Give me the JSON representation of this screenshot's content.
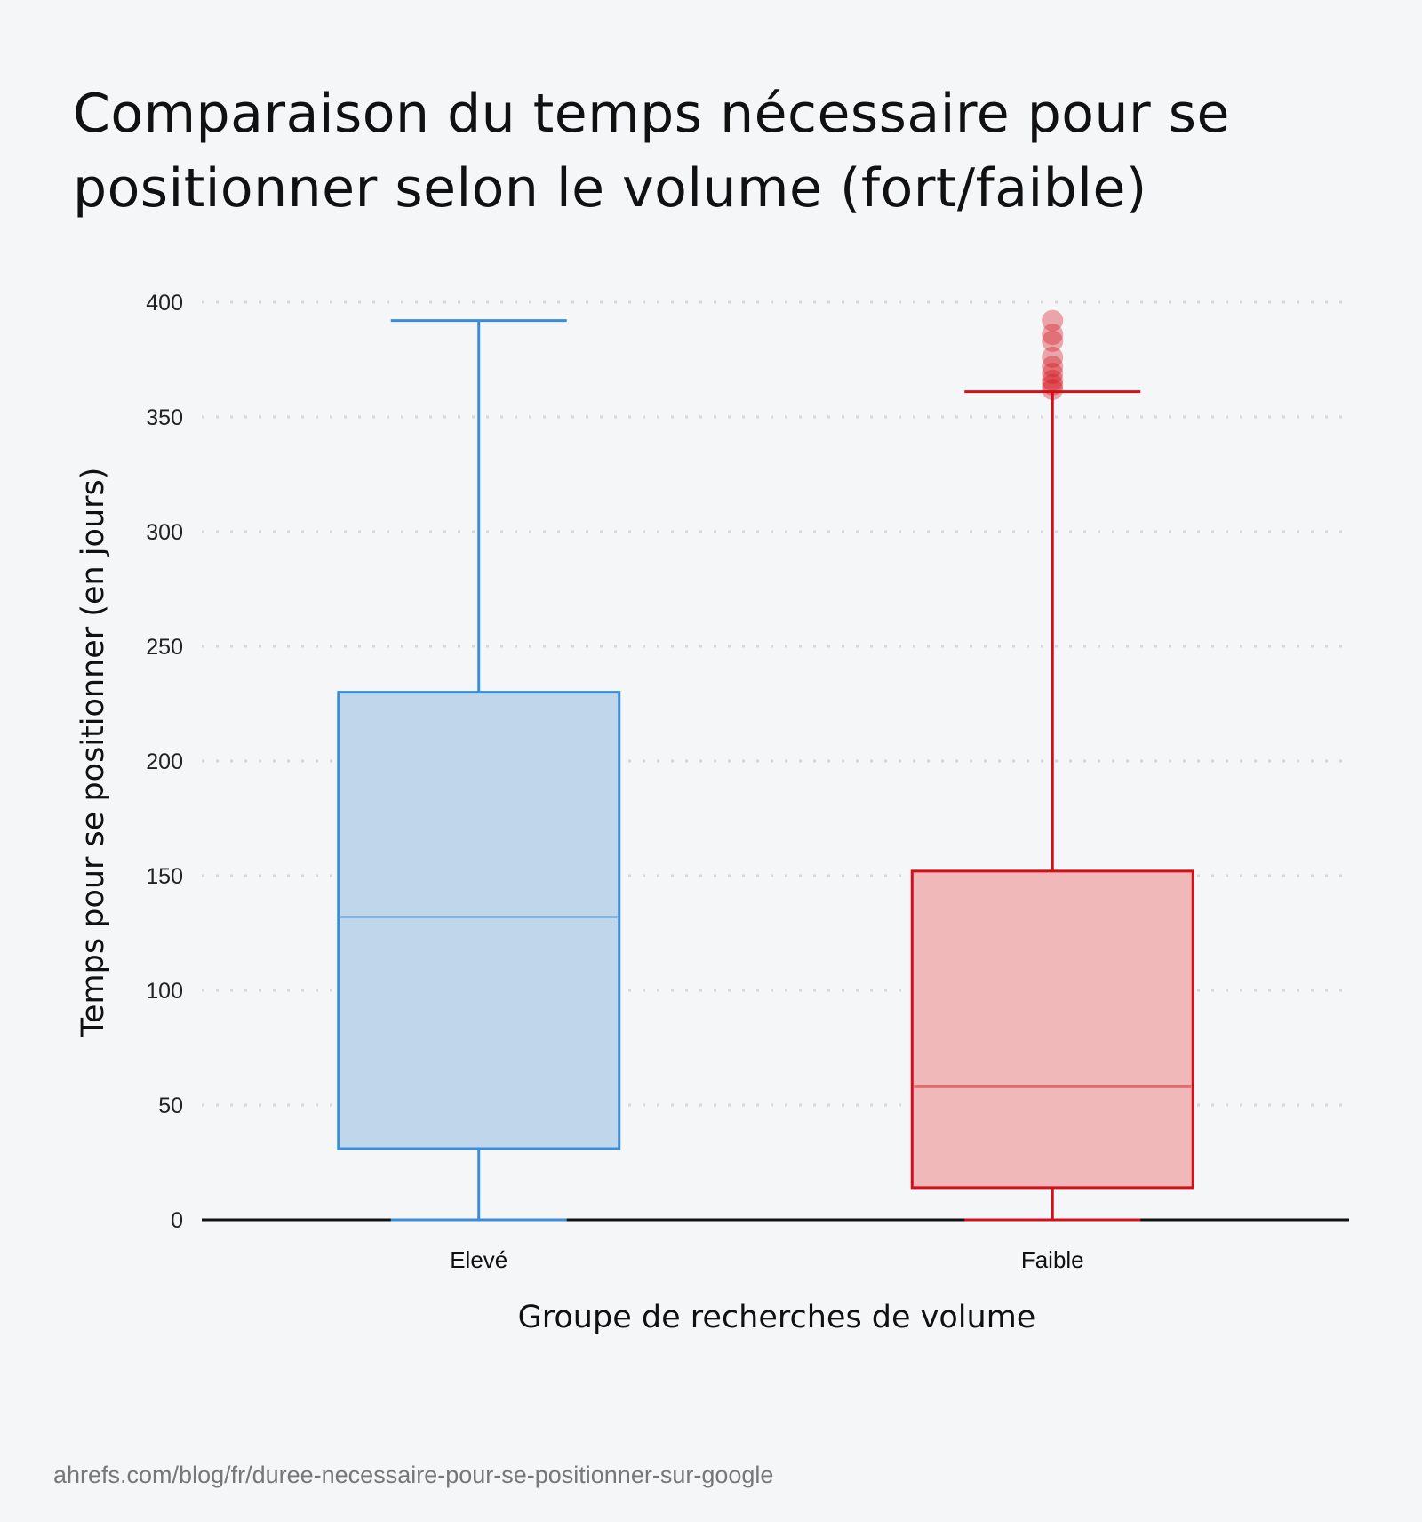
{
  "chart_data": {
    "type": "box",
    "title": "Comparaison du temps nécessaire pour se positionner selon le volume (fort/faible)",
    "xlabel": "Groupe de recherches de volume",
    "ylabel": "Temps pour se positionner (en jours)",
    "ylim": [
      0,
      400
    ],
    "yticks": [
      "0",
      "50",
      "100",
      "150",
      "200",
      "250",
      "300",
      "350",
      "400"
    ],
    "grid": true,
    "categories": [
      "Elevé",
      "Faible"
    ],
    "boxes": [
      {
        "category": "Elevé",
        "min": 0,
        "q1": 31,
        "median": 132,
        "q3": 230,
        "max": 392,
        "outliers": [],
        "color": "#3a8ddb",
        "fill": "#c0d6eb"
      },
      {
        "category": "Faible",
        "min": 0,
        "q1": 14,
        "median": 58,
        "q3": 152,
        "max": 361,
        "outliers": [
          392,
          386,
          383,
          376,
          372,
          369,
          366,
          364,
          362
        ],
        "color": "#d40f1a",
        "fill": "#f0b8b9"
      }
    ]
  },
  "source": "ahrefs.com/blog/fr/duree-necessaire-pour-se-positionner-sur-google"
}
